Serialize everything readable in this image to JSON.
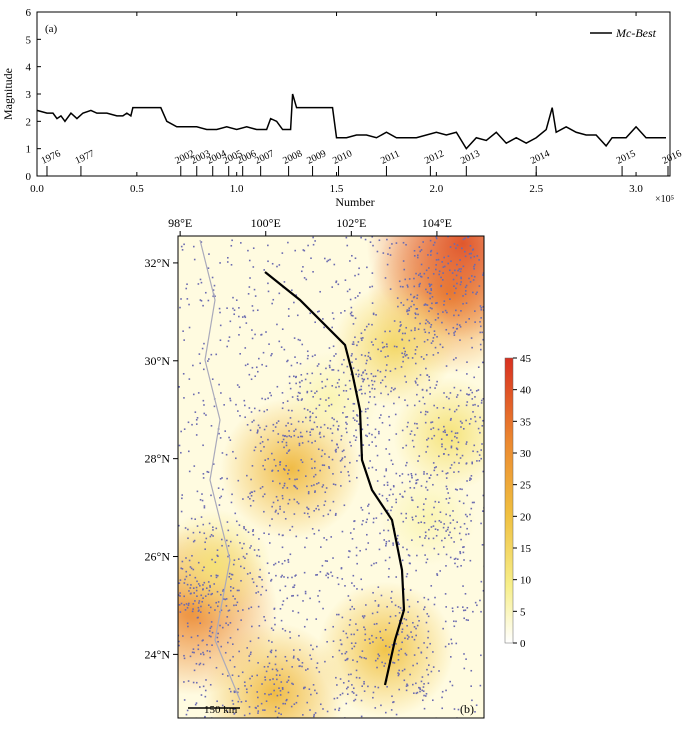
{
  "chart_data": [
    {
      "type": "line",
      "panel_label": "(a)",
      "y_label": "Magnitude",
      "x_label": "Number",
      "x_multiplier": "×10⁵",
      "xlim": [
        0,
        3.17
      ],
      "ylim": [
        0,
        6
      ],
      "xticks": [
        {
          "value": 0,
          "label": "0.0"
        },
        0.5,
        {
          "value": 1,
          "label": "1.0"
        },
        1.5,
        {
          "value": 2,
          "label": "2.0"
        },
        2.5,
        {
          "value": 3,
          "label": "3.0"
        }
      ],
      "yticks": [
        0,
        1,
        2,
        3,
        4,
        5,
        6
      ],
      "legend": "top-right",
      "series": [
        {
          "name": "Mc-Best",
          "color": "#000000",
          "x": [
            0.0,
            0.05,
            0.08,
            0.1,
            0.12,
            0.14,
            0.17,
            0.2,
            0.23,
            0.27,
            0.3,
            0.35,
            0.4,
            0.43,
            0.45,
            0.47,
            0.48,
            0.6,
            0.62,
            0.65,
            0.7,
            0.8,
            0.85,
            0.9,
            0.95,
            1.0,
            1.05,
            1.1,
            1.15,
            1.17,
            1.2,
            1.23,
            1.27,
            1.28,
            1.3,
            1.45,
            1.48,
            1.5,
            1.55,
            1.6,
            1.65,
            1.7,
            1.75,
            1.8,
            1.9,
            2.0,
            2.05,
            2.1,
            2.15,
            2.2,
            2.25,
            2.3,
            2.35,
            2.4,
            2.45,
            2.5,
            2.55,
            2.58,
            2.6,
            2.65,
            2.7,
            2.75,
            2.8,
            2.85,
            2.88,
            2.95,
            3.0,
            3.05,
            3.1,
            3.15
          ],
          "values": [
            2.4,
            2.3,
            2.3,
            2.1,
            2.2,
            2.0,
            2.3,
            2.1,
            2.3,
            2.4,
            2.3,
            2.3,
            2.2,
            2.2,
            2.3,
            2.2,
            2.5,
            2.5,
            2.5,
            2.0,
            1.8,
            1.8,
            1.7,
            1.7,
            1.8,
            1.7,
            1.8,
            1.7,
            1.7,
            2.1,
            2.0,
            1.7,
            1.7,
            3.0,
            2.5,
            2.5,
            2.5,
            1.4,
            1.4,
            1.5,
            1.5,
            1.4,
            1.6,
            1.4,
            1.4,
            1.6,
            1.5,
            1.6,
            1.0,
            1.4,
            1.3,
            1.6,
            1.2,
            1.4,
            1.2,
            1.4,
            1.7,
            2.5,
            1.6,
            1.8,
            1.6,
            1.5,
            1.5,
            1.1,
            1.4,
            1.4,
            1.8,
            1.4,
            1.4,
            1.4
          ]
        }
      ],
      "year_labels": [
        "1976",
        "1977",
        "2002",
        "2003",
        "2004",
        "2005",
        "2006",
        "2007",
        "2008",
        "2009",
        "2010",
        "2011",
        "2012",
        "2013",
        "2014",
        "2015",
        "2016"
      ],
      "year_x": [
        0.05,
        0.22,
        0.72,
        0.8,
        0.88,
        0.96,
        1.03,
        1.12,
        1.26,
        1.38,
        1.51,
        1.75,
        1.97,
        2.15,
        2.5,
        2.93,
        3.16
      ]
    },
    {
      "type": "map",
      "panel_label": "(b)",
      "scale_bar": "150 km",
      "xlim": [
        97.95,
        105.1
      ],
      "ylim": [
        22.7,
        32.55
      ],
      "xticks": [
        {
          "value": 98,
          "label": "98°E"
        },
        {
          "value": 100,
          "label": "100°E"
        },
        {
          "value": 102,
          "label": "102°E"
        },
        {
          "value": 104,
          "label": "104°E"
        }
      ],
      "yticks": [
        {
          "value": 24,
          "label": "24°N"
        },
        {
          "value": 26,
          "label": "26°N"
        },
        {
          "value": 28,
          "label": "28°N"
        },
        {
          "value": 30,
          "label": "30°N"
        },
        {
          "value": 32,
          "label": "32°N"
        }
      ],
      "colorbar_lim": [
        0,
        45
      ],
      "colorbar_ticks": [
        0,
        5,
        10,
        15,
        20,
        25,
        30,
        35,
        40,
        45
      ],
      "hotspots": {
        "lon": [
          104.3,
          104.6,
          103.0,
          100.6,
          98.3,
          100.2,
          102.8,
          104.3,
          98.8,
          101.5,
          103.8
        ],
        "lat": [
          31.4,
          32.4,
          30.3,
          27.8,
          24.9,
          23.2,
          24.1,
          28.5,
          25.8,
          29.2,
          26.8
        ],
        "values": [
          30,
          40,
          15,
          22,
          32,
          22,
          20,
          12,
          12,
          6,
          6
        ]
      }
    }
  ]
}
